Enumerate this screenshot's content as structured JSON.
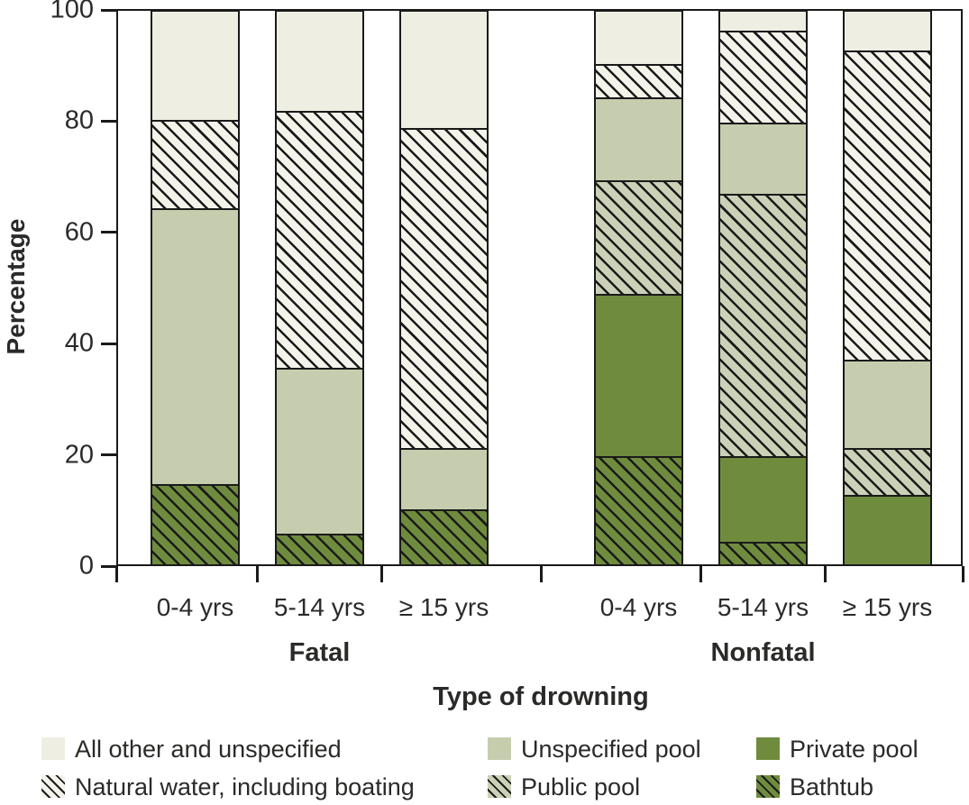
{
  "chart_data": {
    "type": "bar",
    "variant": "stacked-100-percent",
    "title": "",
    "ylabel": "Percentage",
    "xlabel": "Type of drowning",
    "ylim": [
      0,
      100
    ],
    "yticks": [
      0,
      20,
      40,
      60,
      80,
      100
    ],
    "grid": false,
    "legend_position": "bottom",
    "groups": [
      "Fatal",
      "Nonfatal"
    ],
    "categories": [
      "0-4 yrs",
      "5-14 yrs",
      "≥ 15 yrs",
      "0-4 yrs",
      "5-14 yrs",
      "≥ 15 yrs"
    ],
    "category_groups": [
      "Fatal",
      "Fatal",
      "Fatal",
      "Nonfatal",
      "Nonfatal",
      "Nonfatal"
    ],
    "stack_order": "bottom-to-top",
    "series": [
      {
        "name": "Bathtub",
        "key": "bathtub",
        "values": [
          14.5,
          5.5,
          10.0,
          19.5,
          4.0,
          0.0
        ]
      },
      {
        "name": "Private pool",
        "key": "private_pool",
        "values": [
          0.0,
          0.0,
          0.0,
          29.5,
          15.5,
          12.5
        ]
      },
      {
        "name": "Public pool",
        "key": "public_pool",
        "values": [
          0.0,
          0.0,
          0.0,
          20.5,
          47.5,
          8.5
        ]
      },
      {
        "name": "Unspecified pool",
        "key": "unspecified_pool",
        "values": [
          50.0,
          30.0,
          11.0,
          15.0,
          13.0,
          16.0
        ]
      },
      {
        "name": "Natural water, including boating",
        "key": "natural_water",
        "values": [
          16.0,
          46.5,
          58.0,
          6.0,
          16.5,
          56.0
        ]
      },
      {
        "name": "All other and unspecified",
        "key": "all_other",
        "values": [
          19.5,
          18.0,
          21.0,
          9.5,
          3.5,
          7.0
        ]
      }
    ]
  },
  "legend": {
    "items": [
      {
        "key": "all_other",
        "label": "All other and unspecified",
        "hatched": false
      },
      {
        "key": "unspecified_pool",
        "label": "Unspecified pool",
        "hatched": false
      },
      {
        "key": "private_pool",
        "label": "Private pool",
        "hatched": false
      },
      {
        "key": "natural_water",
        "label": "Natural water, including boating",
        "hatched": true
      },
      {
        "key": "public_pool",
        "label": "Public pool",
        "hatched": true
      },
      {
        "key": "bathtub",
        "label": "Bathtub",
        "hatched": true
      }
    ]
  },
  "styles": {
    "colors": {
      "all_other_fill": "#efeee2",
      "natural_water_fill": "#f4f3ea",
      "unspecified_pool_fill": "#c5cdae",
      "public_pool_fill": "#cbd1b6",
      "private_pool_fill": "#6f8c3e",
      "bathtub_fill": "#6f8c3e",
      "hatch_line": "#1a1a1a",
      "frame_line": "#1a1a1a",
      "text": "#2b2a28",
      "background": "#ffffff"
    }
  }
}
